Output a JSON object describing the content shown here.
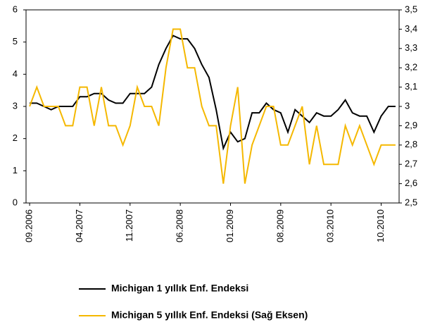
{
  "chart_data": {
    "type": "line",
    "categories": [
      "09.2006",
      null,
      null,
      null,
      null,
      null,
      null,
      "04.2007",
      null,
      null,
      null,
      null,
      null,
      null,
      "11.2007",
      null,
      null,
      null,
      null,
      null,
      null,
      "06.2008",
      null,
      null,
      null,
      null,
      null,
      null,
      "01.2009",
      null,
      null,
      null,
      null,
      null,
      null,
      "08.2009",
      null,
      null,
      null,
      null,
      null,
      null,
      "03.2010",
      null,
      null,
      null,
      null,
      null,
      null,
      "10.2010",
      null,
      null
    ],
    "series": [
      {
        "name": "Michigan 1 yıllık Enf. Endeksi",
        "color": "#000000",
        "values": [
          3.1,
          3.1,
          3.0,
          2.9,
          3.0,
          3.0,
          3.0,
          3.3,
          3.3,
          3.4,
          3.4,
          3.2,
          3.1,
          3.1,
          3.4,
          3.4,
          3.4,
          3.6,
          4.3,
          4.8,
          5.2,
          5.1,
          5.1,
          4.8,
          4.3,
          3.9,
          2.9,
          1.7,
          2.2,
          1.9,
          2.0,
          2.8,
          2.8,
          3.1,
          2.9,
          2.8,
          2.2,
          2.9,
          2.7,
          2.5,
          2.8,
          2.7,
          2.7,
          2.9,
          3.2,
          2.8,
          2.7,
          2.7,
          2.2,
          2.7,
          3.0,
          3.0
        ]
      },
      {
        "name": "Michigan 5 yıllık Enf. Endeksi (Sağ Eksen)",
        "color": "#f5b800",
        "axis": "y2",
        "values": [
          3.0,
          3.1,
          3.0,
          3.0,
          3.0,
          2.9,
          2.9,
          3.1,
          3.1,
          2.9,
          3.1,
          2.9,
          2.9,
          2.8,
          2.9,
          3.1,
          3.0,
          3.0,
          2.9,
          3.2,
          3.4,
          3.4,
          3.2,
          3.2,
          3.0,
          2.9,
          2.9,
          2.6,
          2.9,
          3.1,
          2.6,
          2.8,
          2.9,
          3.0,
          3.0,
          2.8,
          2.8,
          2.9,
          3.0,
          2.7,
          2.9,
          2.7,
          2.7,
          2.7,
          2.9,
          2.8,
          2.9,
          2.8,
          2.7,
          2.8,
          2.8,
          2.8
        ]
      }
    ],
    "ylim": [
      0,
      6
    ],
    "yticks": [
      0,
      1,
      2,
      3,
      4,
      5,
      6
    ],
    "y2lim": [
      2.5,
      3.5
    ],
    "y2ticks": [
      {
        "value": 2.5,
        "label": "2,5"
      },
      {
        "value": 2.6,
        "label": "2,6"
      },
      {
        "value": 2.7,
        "label": "2,7"
      },
      {
        "value": 2.8,
        "label": "2,8"
      },
      {
        "value": 2.9,
        "label": "2,9"
      },
      3,
      {
        "value": 3.1,
        "label": "3,1"
      },
      {
        "value": 3.2,
        "label": "3,2"
      },
      {
        "value": 3.3,
        "label": "3,3"
      },
      {
        "value": 3.4,
        "label": "3,4"
      },
      {
        "value": 3.5,
        "label": "3,5"
      }
    ],
    "legend": "bottom"
  }
}
